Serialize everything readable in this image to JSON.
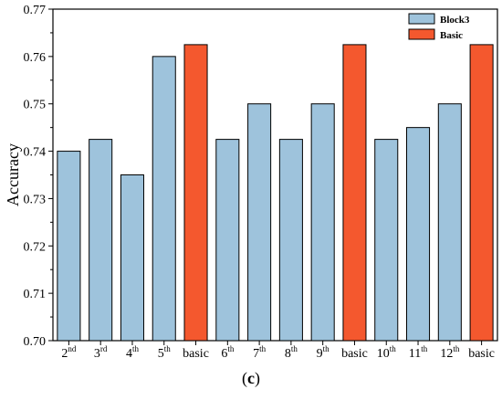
{
  "caption": "(c)",
  "chart_data": {
    "type": "bar",
    "categories": [
      {
        "base": "2",
        "sup": "nd"
      },
      {
        "base": "3",
        "sup": "rd"
      },
      {
        "base": "4",
        "sup": "th"
      },
      {
        "base": "5",
        "sup": "th"
      },
      {
        "base": "basic",
        "sup": ""
      },
      {
        "base": "6",
        "sup": "th"
      },
      {
        "base": "7",
        "sup": "th"
      },
      {
        "base": "8",
        "sup": "th"
      },
      {
        "base": "9",
        "sup": "th"
      },
      {
        "base": "basic",
        "sup": ""
      },
      {
        "base": "10",
        "sup": "th"
      },
      {
        "base": "11",
        "sup": "th"
      },
      {
        "base": "12",
        "sup": "th"
      },
      {
        "base": "basic",
        "sup": ""
      }
    ],
    "values": [
      0.74,
      0.7425,
      0.735,
      0.76,
      0.7625,
      0.7425,
      0.75,
      0.7425,
      0.75,
      0.7625,
      0.7425,
      0.745,
      0.75,
      0.7625
    ],
    "bar_series": [
      "Block3",
      "Block3",
      "Block3",
      "Block3",
      "Basic",
      "Block3",
      "Block3",
      "Block3",
      "Block3",
      "Basic",
      "Block3",
      "Block3",
      "Block3",
      "Basic"
    ],
    "series": [
      {
        "name": "Block3",
        "color": "#9ec3dc"
      },
      {
        "name": "Basic",
        "color": "#f4582e"
      }
    ],
    "title": "",
    "xlabel": "",
    "ylabel": "Accuracy",
    "ylim": [
      0.7,
      0.77
    ],
    "yticks": [
      "0.70",
      "0.71",
      "0.72",
      "0.73",
      "0.74",
      "0.75",
      "0.76",
      "0.77"
    ],
    "grid": false,
    "legend_position": "top-right"
  }
}
